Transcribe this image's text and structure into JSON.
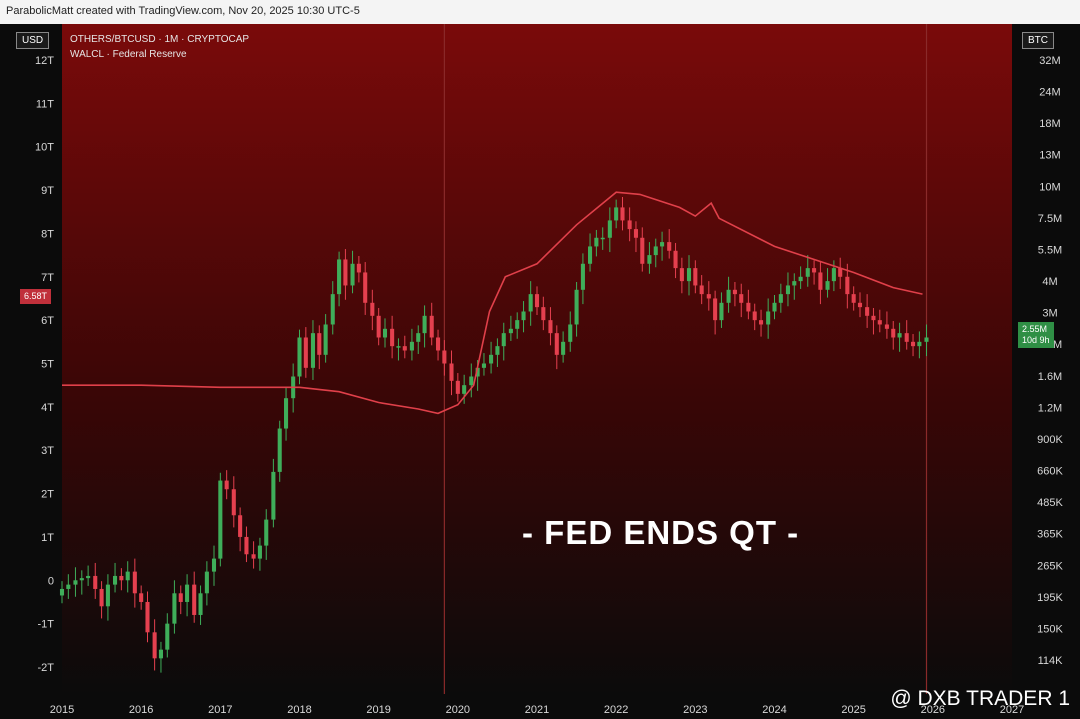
{
  "header": {
    "text": "ParabolicMatt created with TradingView.com, Nov 20, 2025 10:30 UTC-5"
  },
  "left_axis_badge": "USD",
  "right_axis_badge": "BTC",
  "legend": {
    "line1": "OTHERS/BTCUSD · 1M · CRYPTOCAP",
    "line2": "WALCL · Federal Reserve"
  },
  "left_price_tag": "6.58T",
  "right_price_tag": {
    "value": "2.55M",
    "countdown": "10d 9h"
  },
  "overlay_text": "- FED ENDS QT -",
  "watermark": "@ DXB TRADER 1",
  "colors": {
    "up": "#3fae5a",
    "down": "#e5404f",
    "walcl": "#e0404a",
    "bg_top": "#7a0a0a",
    "bg_bottom": "#0b0b0b"
  },
  "chart_data": {
    "type": "line",
    "x_ticks": [
      "2015",
      "2016",
      "2017",
      "2018",
      "2019",
      "2020",
      "2021",
      "2022",
      "2023",
      "2024",
      "2025",
      "2026",
      "2027"
    ],
    "left_axis_ticks": [
      "12T",
      "11T",
      "10T",
      "9T",
      "8T",
      "7T",
      "6T",
      "5T",
      "4T",
      "3T",
      "2T",
      "1T",
      "0",
      "-1T",
      "-2T"
    ],
    "right_axis_ticks": [
      "32M",
      "24M",
      "18M",
      "13M",
      "10M",
      "7.5M",
      "5.5M",
      "4M",
      "3M",
      "2.2M",
      "1.6M",
      "1.2M",
      "900K",
      "660K",
      "485K",
      "365K",
      "265K",
      "195K",
      "150K",
      "114K"
    ],
    "vertical_lines": [
      "2019.83",
      "2025.92"
    ],
    "series": [
      {
        "name": "WALCL",
        "axis": "left",
        "x": [
          2015.0,
          2016.0,
          2017.0,
          2018.0,
          2018.5,
          2019.0,
          2019.5,
          2019.75,
          2020.0,
          2020.2,
          2020.4,
          2020.6,
          2021.0,
          2021.5,
          2022.0,
          2022.3,
          2022.8,
          2023.0,
          2023.2,
          2023.3,
          2024.0,
          2025.0,
          2025.5,
          2025.87
        ],
        "y": [
          4.5,
          4.5,
          4.45,
          4.45,
          4.35,
          4.1,
          3.95,
          3.85,
          4.05,
          4.5,
          6.2,
          7.0,
          7.3,
          8.2,
          8.95,
          8.9,
          8.6,
          8.4,
          8.7,
          8.35,
          7.7,
          7.1,
          6.75,
          6.6
        ]
      }
    ],
    "candles": {
      "axis": "left",
      "x": [
        2015.0,
        2015.08,
        2015.17,
        2015.25,
        2015.33,
        2015.42,
        2015.5,
        2015.58,
        2015.67,
        2015.75,
        2015.83,
        2015.92,
        2016.0,
        2016.08,
        2016.17,
        2016.25,
        2016.33,
        2016.42,
        2016.5,
        2016.58,
        2016.67,
        2016.75,
        2016.83,
        2016.92,
        2017.0,
        2017.08,
        2017.17,
        2017.25,
        2017.33,
        2017.42,
        2017.5,
        2017.58,
        2017.67,
        2017.75,
        2017.83,
        2017.92,
        2018.0,
        2018.08,
        2018.17,
        2018.25,
        2018.33,
        2018.42,
        2018.5,
        2018.58,
        2018.67,
        2018.75,
        2018.83,
        2018.92,
        2019.0,
        2019.08,
        2019.17,
        2019.25,
        2019.33,
        2019.42,
        2019.5,
        2019.58,
        2019.67,
        2019.75,
        2019.83,
        2019.92,
        2020.0,
        2020.08,
        2020.17,
        2020.25,
        2020.33,
        2020.42,
        2020.5,
        2020.58,
        2020.67,
        2020.75,
        2020.83,
        2020.92,
        2021.0,
        2021.08,
        2021.17,
        2021.25,
        2021.33,
        2021.42,
        2021.5,
        2021.58,
        2021.67,
        2021.75,
        2021.83,
        2021.92,
        2022.0,
        2022.08,
        2022.17,
        2022.25,
        2022.33,
        2022.42,
        2022.5,
        2022.58,
        2022.67,
        2022.75,
        2022.83,
        2022.92,
        2023.0,
        2023.08,
        2023.17,
        2023.25,
        2023.33,
        2023.42,
        2023.5,
        2023.58,
        2023.67,
        2023.75,
        2023.83,
        2023.92,
        2024.0,
        2024.08,
        2024.17,
        2024.25,
        2024.33,
        2024.42,
        2024.5,
        2024.58,
        2024.67,
        2024.75,
        2024.83,
        2024.92,
        2025.0,
        2025.08,
        2025.17,
        2025.25,
        2025.33,
        2025.42,
        2025.5,
        2025.58,
        2025.67,
        2025.75,
        2025.83,
        2025.92
      ],
      "close": [
        -0.2,
        -0.1,
        0.0,
        0.05,
        0.1,
        -0.2,
        -0.6,
        -0.1,
        0.1,
        0.0,
        0.2,
        -0.3,
        -0.5,
        -1.2,
        -1.8,
        -1.6,
        -1.0,
        -0.3,
        -0.5,
        -0.1,
        -0.8,
        -0.3,
        0.2,
        0.5,
        2.3,
        2.1,
        1.5,
        1.0,
        0.6,
        0.5,
        0.8,
        1.4,
        2.5,
        3.5,
        4.2,
        4.7,
        5.6,
        4.9,
        5.7,
        5.2,
        5.9,
        6.6,
        7.4,
        6.8,
        7.3,
        7.1,
        6.4,
        6.1,
        5.6,
        5.8,
        5.4,
        5.4,
        5.3,
        5.5,
        5.7,
        6.1,
        5.6,
        5.3,
        5.0,
        4.6,
        4.3,
        4.5,
        4.7,
        4.9,
        5.0,
        5.2,
        5.4,
        5.7,
        5.8,
        6.0,
        6.2,
        6.6,
        6.3,
        6.0,
        5.7,
        5.2,
        5.5,
        5.9,
        6.7,
        7.3,
        7.7,
        7.9,
        7.9,
        8.3,
        8.6,
        8.3,
        8.1,
        7.9,
        7.3,
        7.5,
        7.7,
        7.8,
        7.6,
        7.2,
        6.9,
        7.2,
        6.8,
        6.6,
        6.5,
        6.0,
        6.4,
        6.7,
        6.6,
        6.4,
        6.2,
        6.0,
        5.9,
        6.2,
        6.4,
        6.6,
        6.8,
        6.9,
        7.0,
        7.2,
        7.1,
        6.7,
        6.9,
        7.2,
        7.0,
        6.6,
        6.4,
        6.3,
        6.1,
        6.0,
        5.9,
        5.8,
        5.6,
        5.7,
        5.5,
        5.4,
        5.5,
        5.6
      ]
    }
  }
}
